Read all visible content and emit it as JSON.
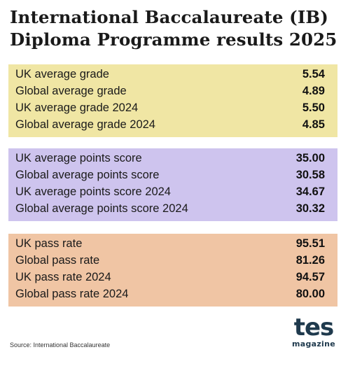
{
  "title": {
    "line1": "International Baccalaureate (IB)",
    "line2": "Diploma Programme results 2025"
  },
  "sections": [
    {
      "color": "#f0e6a4",
      "rows": [
        {
          "label": "UK average grade",
          "value": "5.54"
        },
        {
          "label": "Global average grade",
          "value": "4.89"
        },
        {
          "label": "UK average grade 2024",
          "value": "5.50"
        },
        {
          "label": "Global average grade 2024",
          "value": "4.85"
        }
      ]
    },
    {
      "color": "#cec4ee",
      "rows": [
        {
          "label": "UK average points score",
          "value": "35.00"
        },
        {
          "label": "Global average points score",
          "value": "30.58"
        },
        {
          "label": "UK average points score 2024",
          "value": "34.67"
        },
        {
          "label": "Global average points score 2024",
          "value": "30.32"
        }
      ]
    },
    {
      "color": "#f0c5a4",
      "rows": [
        {
          "label": "UK pass rate",
          "value": "95.51"
        },
        {
          "label": "Global pass rate",
          "value": "81.26"
        },
        {
          "label": "UK pass rate 2024",
          "value": "94.57"
        },
        {
          "label": "Global pass rate 2024",
          "value": "80.00"
        }
      ]
    }
  ],
  "footer": {
    "source": "Source: International Baccalaureate",
    "logo_word": "tes",
    "logo_sub": "magazine",
    "logo_color": "#1f3a4d"
  }
}
